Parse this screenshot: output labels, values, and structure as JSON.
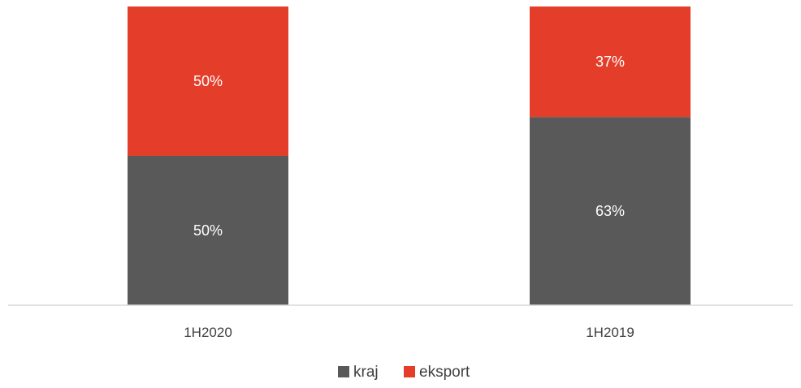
{
  "chart_data": {
    "type": "bar",
    "stacked": true,
    "percent": true,
    "categories": [
      "1H2020",
      "1H2019"
    ],
    "series": [
      {
        "name": "kraj",
        "values": [
          50,
          63
        ],
        "labels": [
          "50%",
          "63%"
        ],
        "color": "#595959"
      },
      {
        "name": "eksport",
        "values": [
          50,
          37
        ],
        "labels": [
          "50%",
          "37%"
        ],
        "color": "#E43E2B"
      }
    ],
    "ylim": [
      0,
      100
    ],
    "grid": false,
    "legend": "bottom",
    "axis_color": "#D9D9D9"
  }
}
